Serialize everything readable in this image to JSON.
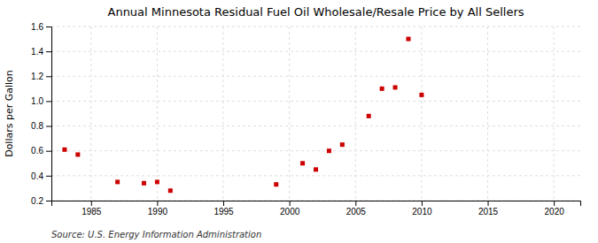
{
  "chart_data": {
    "type": "scatter",
    "title": "Annual Minnesota Residual Fuel Oil Wholesale/Resale Price by All Sellers",
    "ylabel": "Dollars per Gallon",
    "annotation": "Source: U.S. Energy Information Administration",
    "x": [
      1983,
      1984,
      1987,
      1989,
      1990,
      1991,
      1999,
      2001,
      2002,
      2003,
      2004,
      2006,
      2007,
      2008,
      2009,
      2010
    ],
    "values": [
      0.61,
      0.57,
      0.35,
      0.34,
      0.35,
      0.28,
      0.33,
      0.5,
      0.45,
      0.6,
      0.65,
      0.88,
      1.1,
      1.11,
      1.5,
      1.05
    ],
    "color": "#cc0000",
    "marker": "square",
    "xlim": [
      1982,
      2022
    ],
    "ylim": [
      0.2,
      1.6
    ],
    "xticks": [
      1985,
      1990,
      1995,
      2000,
      2005,
      2010,
      2015,
      2020
    ],
    "yticks": [
      0.2,
      0.4,
      0.6,
      0.8,
      {
        "value": 1.0,
        "label": "1.0"
      },
      1.2,
      1.4,
      1.6
    ],
    "grid": true
  }
}
